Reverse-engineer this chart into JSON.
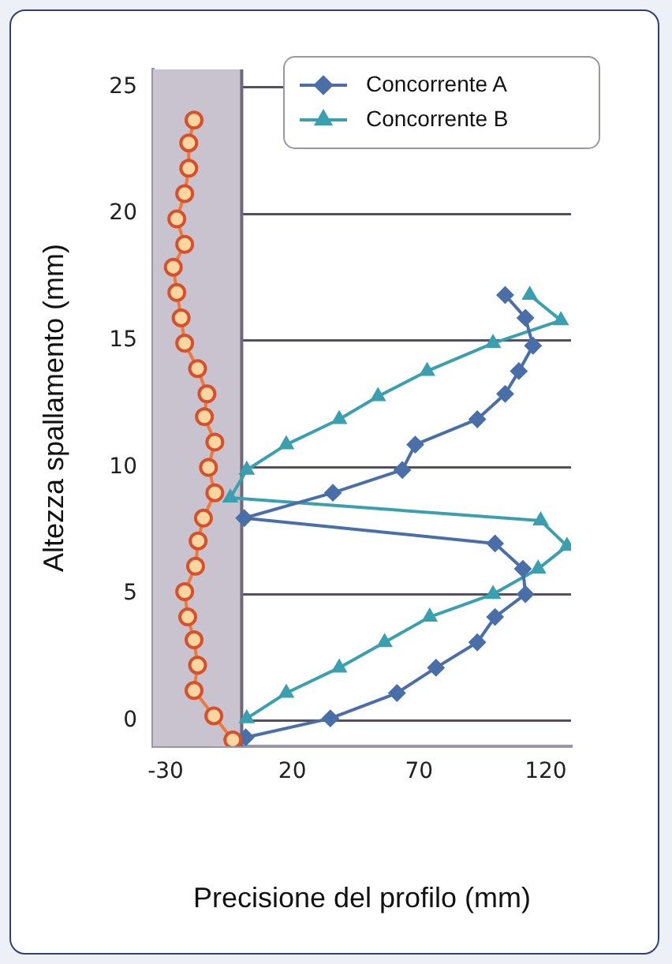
{
  "chart_data": {
    "type": "line",
    "xlabel": "Precisione del profilo (mm)",
    "ylabel": "Altezza spallamento (mm)",
    "xlim": [
      -35,
      130
    ],
    "xticks": [
      -30,
      20,
      70,
      120
    ],
    "ylim": [
      -1,
      25.7
    ],
    "yticks": [
      0,
      5,
      10,
      15,
      20,
      25
    ],
    "grid": "y",
    "legend": "top right",
    "line_style": "solid",
    "ref_lines": [
      {
        "axis": "x",
        "value": 0,
        "color": "#6e6878"
      }
    ],
    "bands": [
      {
        "axis": "x",
        "from": -35,
        "to": 0,
        "color": "#c9c3d0"
      }
    ],
    "series": [
      {
        "color": "#ee7a3a",
        "marker": "circle",
        "x": [
          -3.5,
          -11,
          -18.8,
          -17.4,
          -18.8,
          -21.3,
          -22.5,
          -18.2,
          -17.2,
          -15.1,
          -10.6,
          -13.1,
          -10.6,
          -14.7,
          -13.7,
          -17.4,
          -22.5,
          -23.9,
          -25.6,
          -27,
          -22.5,
          -25.6,
          -22.5,
          -20.9,
          -20.9,
          -18.8
        ],
        "values": [
          -0.75,
          0.2,
          1.2,
          2.2,
          3.2,
          4.1,
          5.1,
          6.1,
          7.1,
          8,
          9,
          10,
          11,
          12,
          12.9,
          13.9,
          14.9,
          15.9,
          16.9,
          17.9,
          18.8,
          19.8,
          20.8,
          21.8,
          22.8,
          23.7
        ]
      },
      {
        "name": "Concorrente A",
        "color": "#4a6fa8",
        "marker": "diamond",
        "x": [
          1.6,
          35,
          61.3,
          76.7,
          93,
          100,
          112,
          111,
          100,
          1,
          36,
          63.4,
          68.5,
          93,
          104,
          109.4,
          115,
          112,
          104
        ],
        "values": [
          -0.65,
          0.1,
          1.1,
          2.1,
          3.1,
          4.1,
          5,
          6,
          7,
          8,
          9,
          9.9,
          10.9,
          11.9,
          12.9,
          13.8,
          14.8,
          15.9,
          16.8
        ]
      },
      {
        "name": "Concorrente B",
        "color": "#3aa0b0",
        "marker": "triangle",
        "x": [
          2,
          17.6,
          38.5,
          56.4,
          74.2,
          99.2,
          117,
          128.4,
          118,
          -4.5,
          2,
          17.6,
          38.5,
          53.8,
          73.2,
          99.2,
          126,
          113.7
        ],
        "values": [
          0.1,
          1.1,
          2.1,
          3.1,
          4.1,
          5,
          6,
          6.9,
          7.9,
          8.8,
          9.9,
          10.9,
          11.9,
          12.8,
          13.8,
          14.9,
          15.8,
          16.8
        ]
      }
    ]
  }
}
